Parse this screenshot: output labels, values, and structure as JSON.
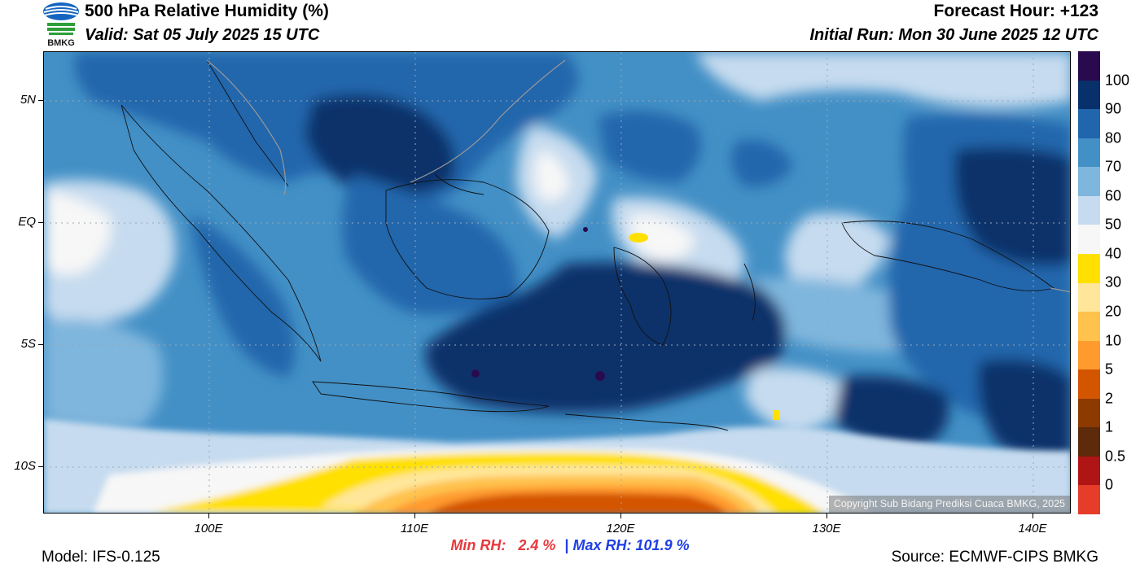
{
  "header": {
    "title": "500 hPa Relative Humidity (%)",
    "valid": "Valid: Sat 05 July 2025 15 UTC",
    "forecast_hour": "Forecast Hour: +123",
    "initial_run": "Initial Run: Mon 30 June 2025 12 UTC"
  },
  "logo": {
    "text": "BMKG"
  },
  "map": {
    "copyright": "Copyright Sub Bidang Prediksi Cuaca BMKG, 2025",
    "lat_labels": [
      "5N",
      "EQ",
      "5S",
      "10S"
    ],
    "lon_labels": [
      "100E",
      "110E",
      "120E",
      "130E",
      "140E"
    ]
  },
  "colorbar": {
    "labels": [
      "100",
      "90",
      "80",
      "70",
      "60",
      "50",
      "40",
      "30",
      "20",
      "10",
      "5",
      "2",
      "1",
      "0.5",
      "0"
    ],
    "colors": [
      "#2a0a4e",
      "#08306b",
      "#2166ac",
      "#4390c6",
      "#7fb6dd",
      "#c6dbef",
      "#f7f7f7",
      "#ffe000",
      "#ffe69a",
      "#ffc24d",
      "#ff9a2e",
      "#d45500",
      "#8c3a00",
      "#5e2a0c",
      "#b01515",
      "#e53d2a"
    ]
  },
  "stats": {
    "min_label": "Min RH:",
    "min_value": "2.4 %",
    "separator": "|",
    "max_label": "Max RH:",
    "max_value": "101.9 %"
  },
  "footer": {
    "model": "Model: IFS-0.125",
    "source": "Source: ECMWF-CIPS BMKG"
  }
}
